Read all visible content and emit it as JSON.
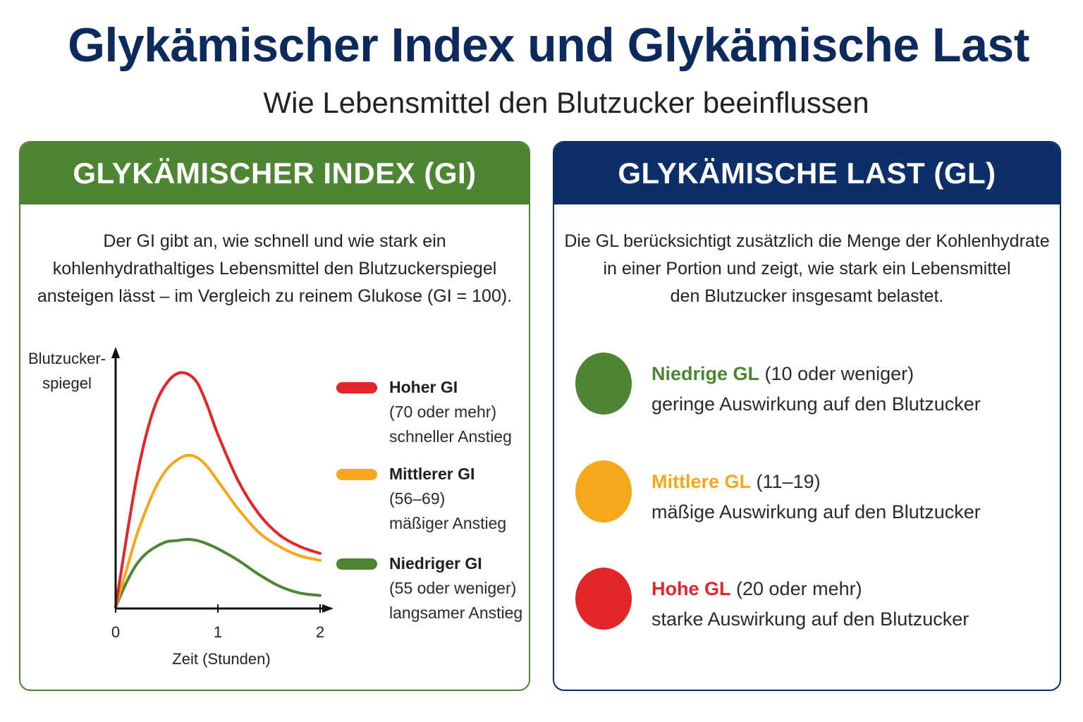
{
  "title": "Glykämischer Index und Glykämische Last",
  "subtitle": "Wie Lebensmittel den Blutzucker beeinflussen",
  "colors": {
    "navy": "#0c2f6a",
    "green": "#4e8533",
    "orange": "#f5a81c",
    "red": "#e3262a"
  },
  "gi_panel": {
    "header": "GLYKÄMISCHER INDEX (GI)",
    "intro": [
      "Der GI gibt an, wie schnell und wie stark ein",
      "kohlenhydrathaltiges Lebensmittel den Blutzuckerspiegel",
      "ansteigen lässt – im Vergleich zu reinem Glukose (GI = 100)."
    ],
    "legend": [
      {
        "label": "Hoher GI",
        "range": "(70 oder mehr)",
        "desc": "schneller Anstieg",
        "color": "#e3262a"
      },
      {
        "label": "Mittlerer GI",
        "range": "(56–69)",
        "desc": "mäßiger Anstieg",
        "color": "#f5a81c"
      },
      {
        "label": "Niedriger GI",
        "range": "(55 oder weniger)",
        "desc": "langsamer Anstieg",
        "color": "#4e8533"
      }
    ]
  },
  "gl_panel": {
    "header": "GLYKÄMISCHE LAST (GL)",
    "intro": [
      "Die GL berücksichtigt zusätzlich die Menge der Kohlenhydrate",
      "in einer Portion und zeigt, wie stark ein Lebensmittel",
      "den Blutzucker insgesamt belastet."
    ],
    "items": [
      {
        "label": "Niedrige GL",
        "range": "(10 oder weniger)",
        "desc": "geringe Auswirkung auf den Blutzucker",
        "color": "#4e8533"
      },
      {
        "label": "Mittlere GL",
        "range": "(11–19)",
        "desc": "mäßige Auswirkung auf den Blutzucker",
        "color": "#f5a81c"
      },
      {
        "label": "Hohe GL",
        "range": "(20 oder mehr)",
        "desc": "starke Auswirkung auf den Blutzucker",
        "color": "#e3262a"
      }
    ]
  },
  "chart_data": {
    "type": "line",
    "title": "",
    "xlabel": "Zeit (Stunden)",
    "ylabel": [
      "Blutzucker-",
      "spiegel"
    ],
    "x_ticks": [
      "0",
      "1",
      "2"
    ],
    "xlim": [
      0,
      2
    ],
    "ylim": [
      0,
      1
    ],
    "series": [
      {
        "name": "Hoher GI",
        "color": "#e3262a",
        "x": [
          0,
          0.1,
          0.2,
          0.3,
          0.4,
          0.5,
          0.6,
          0.7,
          0.8,
          0.9,
          1.0,
          1.2,
          1.4,
          1.6,
          1.8,
          2.0
        ],
        "y": [
          0,
          0.28,
          0.54,
          0.74,
          0.88,
          0.96,
          1.0,
          1.0,
          0.96,
          0.86,
          0.74,
          0.54,
          0.4,
          0.31,
          0.26,
          0.23
        ]
      },
      {
        "name": "Mittlerer GI",
        "color": "#f5a81c",
        "x": [
          0,
          0.1,
          0.2,
          0.3,
          0.4,
          0.5,
          0.6,
          0.7,
          0.8,
          0.9,
          1.0,
          1.2,
          1.4,
          1.6,
          1.8,
          2.0
        ],
        "y": [
          0,
          0.15,
          0.3,
          0.42,
          0.52,
          0.59,
          0.63,
          0.65,
          0.64,
          0.6,
          0.54,
          0.42,
          0.32,
          0.26,
          0.22,
          0.2
        ]
      },
      {
        "name": "Niedriger GI",
        "color": "#4e8533",
        "x": [
          0,
          0.1,
          0.2,
          0.3,
          0.4,
          0.5,
          0.6,
          0.7,
          0.8,
          0.9,
          1.0,
          1.2,
          1.4,
          1.6,
          1.8,
          2.0
        ],
        "y": [
          0,
          0.1,
          0.18,
          0.23,
          0.26,
          0.28,
          0.285,
          0.29,
          0.285,
          0.27,
          0.25,
          0.2,
          0.14,
          0.09,
          0.06,
          0.05
        ]
      }
    ]
  }
}
